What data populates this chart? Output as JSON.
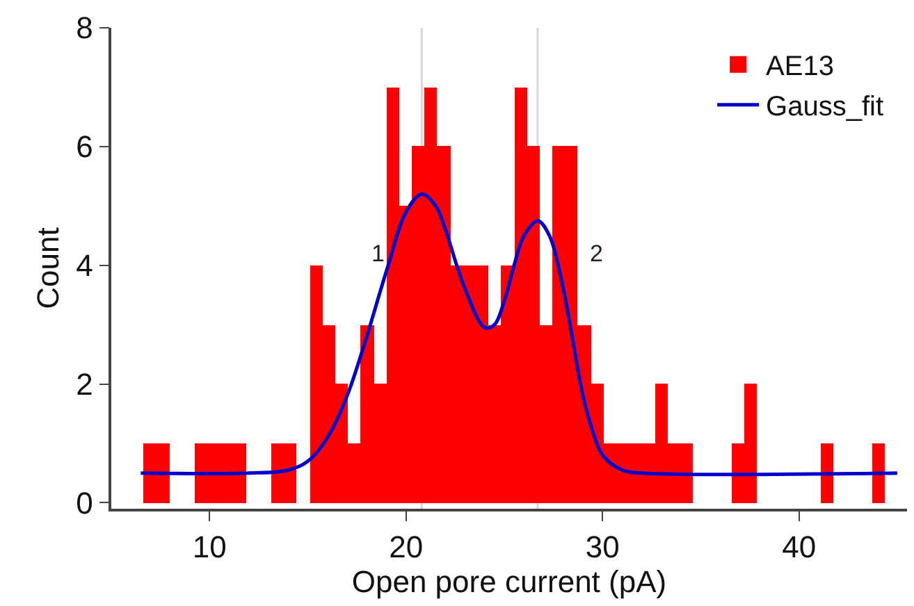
{
  "chart_data": {
    "type": "histogram",
    "xlabel": "Open pore current (pA)",
    "ylabel": "Count",
    "bins": [
      6.65,
      7.3,
      7.95,
      8.6,
      9.25,
      9.9,
      10.55,
      11.2,
      11.85,
      12.5,
      13.15,
      13.8,
      14.45,
      15.1,
      15.75,
      16.4,
      17.05,
      17.7,
      18.35,
      19.0,
      19.65,
      20.3,
      20.95,
      21.6,
      22.25,
      22.9,
      23.55,
      24.2,
      24.85,
      25.5,
      26.15,
      26.8,
      27.45,
      28.1,
      28.75,
      29.4,
      30.05,
      30.7,
      31.35,
      32.0,
      32.65,
      33.3,
      33.95,
      34.6,
      35.25,
      35.9,
      36.55,
      37.2,
      37.85,
      38.5,
      39.15,
      39.8,
      40.45,
      41.1,
      41.75,
      42.4,
      43.05,
      43.7,
      44.35,
      45.0
    ],
    "series": [
      {
        "name": "AE13",
        "color": "#ff0000",
        "values": [
          1,
          1,
          0,
          0,
          1,
          1,
          1,
          1,
          0,
          0,
          1,
          1,
          0,
          4,
          3,
          2,
          1,
          3,
          2,
          7,
          5,
          6,
          7,
          6,
          4,
          4,
          4,
          3,
          4,
          7,
          6,
          3,
          6,
          6,
          3,
          2,
          1,
          1,
          1,
          1,
          2,
          1,
          1,
          0,
          0,
          0,
          1,
          2,
          0,
          0,
          0,
          0,
          0,
          1,
          0,
          0,
          0,
          1,
          0
        ]
      },
      {
        "name": "Gauss_fit",
        "type": "line",
        "color": "#0000cc",
        "line_style": "solid",
        "marker": "none",
        "x": [
          6.5,
          12,
          14,
          15,
          16,
          17,
          18,
          19,
          20,
          20.8,
          21.5,
          22,
          23,
          24,
          24.5,
          25,
          25.5,
          26,
          26.7,
          27.3,
          28,
          28.5,
          29,
          29.5,
          30,
          31,
          32,
          45
        ],
        "values": [
          0.5,
          0.5,
          0.55,
          0.7,
          1.1,
          1.8,
          2.8,
          3.9,
          4.9,
          5.2,
          5.0,
          4.6,
          3.6,
          2.95,
          3.0,
          3.4,
          4.0,
          4.5,
          4.75,
          4.5,
          3.6,
          2.7,
          1.8,
          1.2,
          0.8,
          0.55,
          0.5,
          0.5
        ]
      }
    ],
    "ref_lines": [
      {
        "axis": "x",
        "value": 20.8,
        "color": "#d9d9d9"
      },
      {
        "axis": "x",
        "value": 26.7,
        "color": "#d9d9d9"
      }
    ],
    "annotations": [
      "1",
      "2"
    ],
    "xlim": [
      5,
      45.5
    ],
    "xticks": [
      10,
      20,
      30,
      40
    ],
    "ylim": [
      -0.1,
      8
    ],
    "yticks": [
      0,
      2,
      4,
      6,
      8
    ],
    "legend": "top right"
  }
}
